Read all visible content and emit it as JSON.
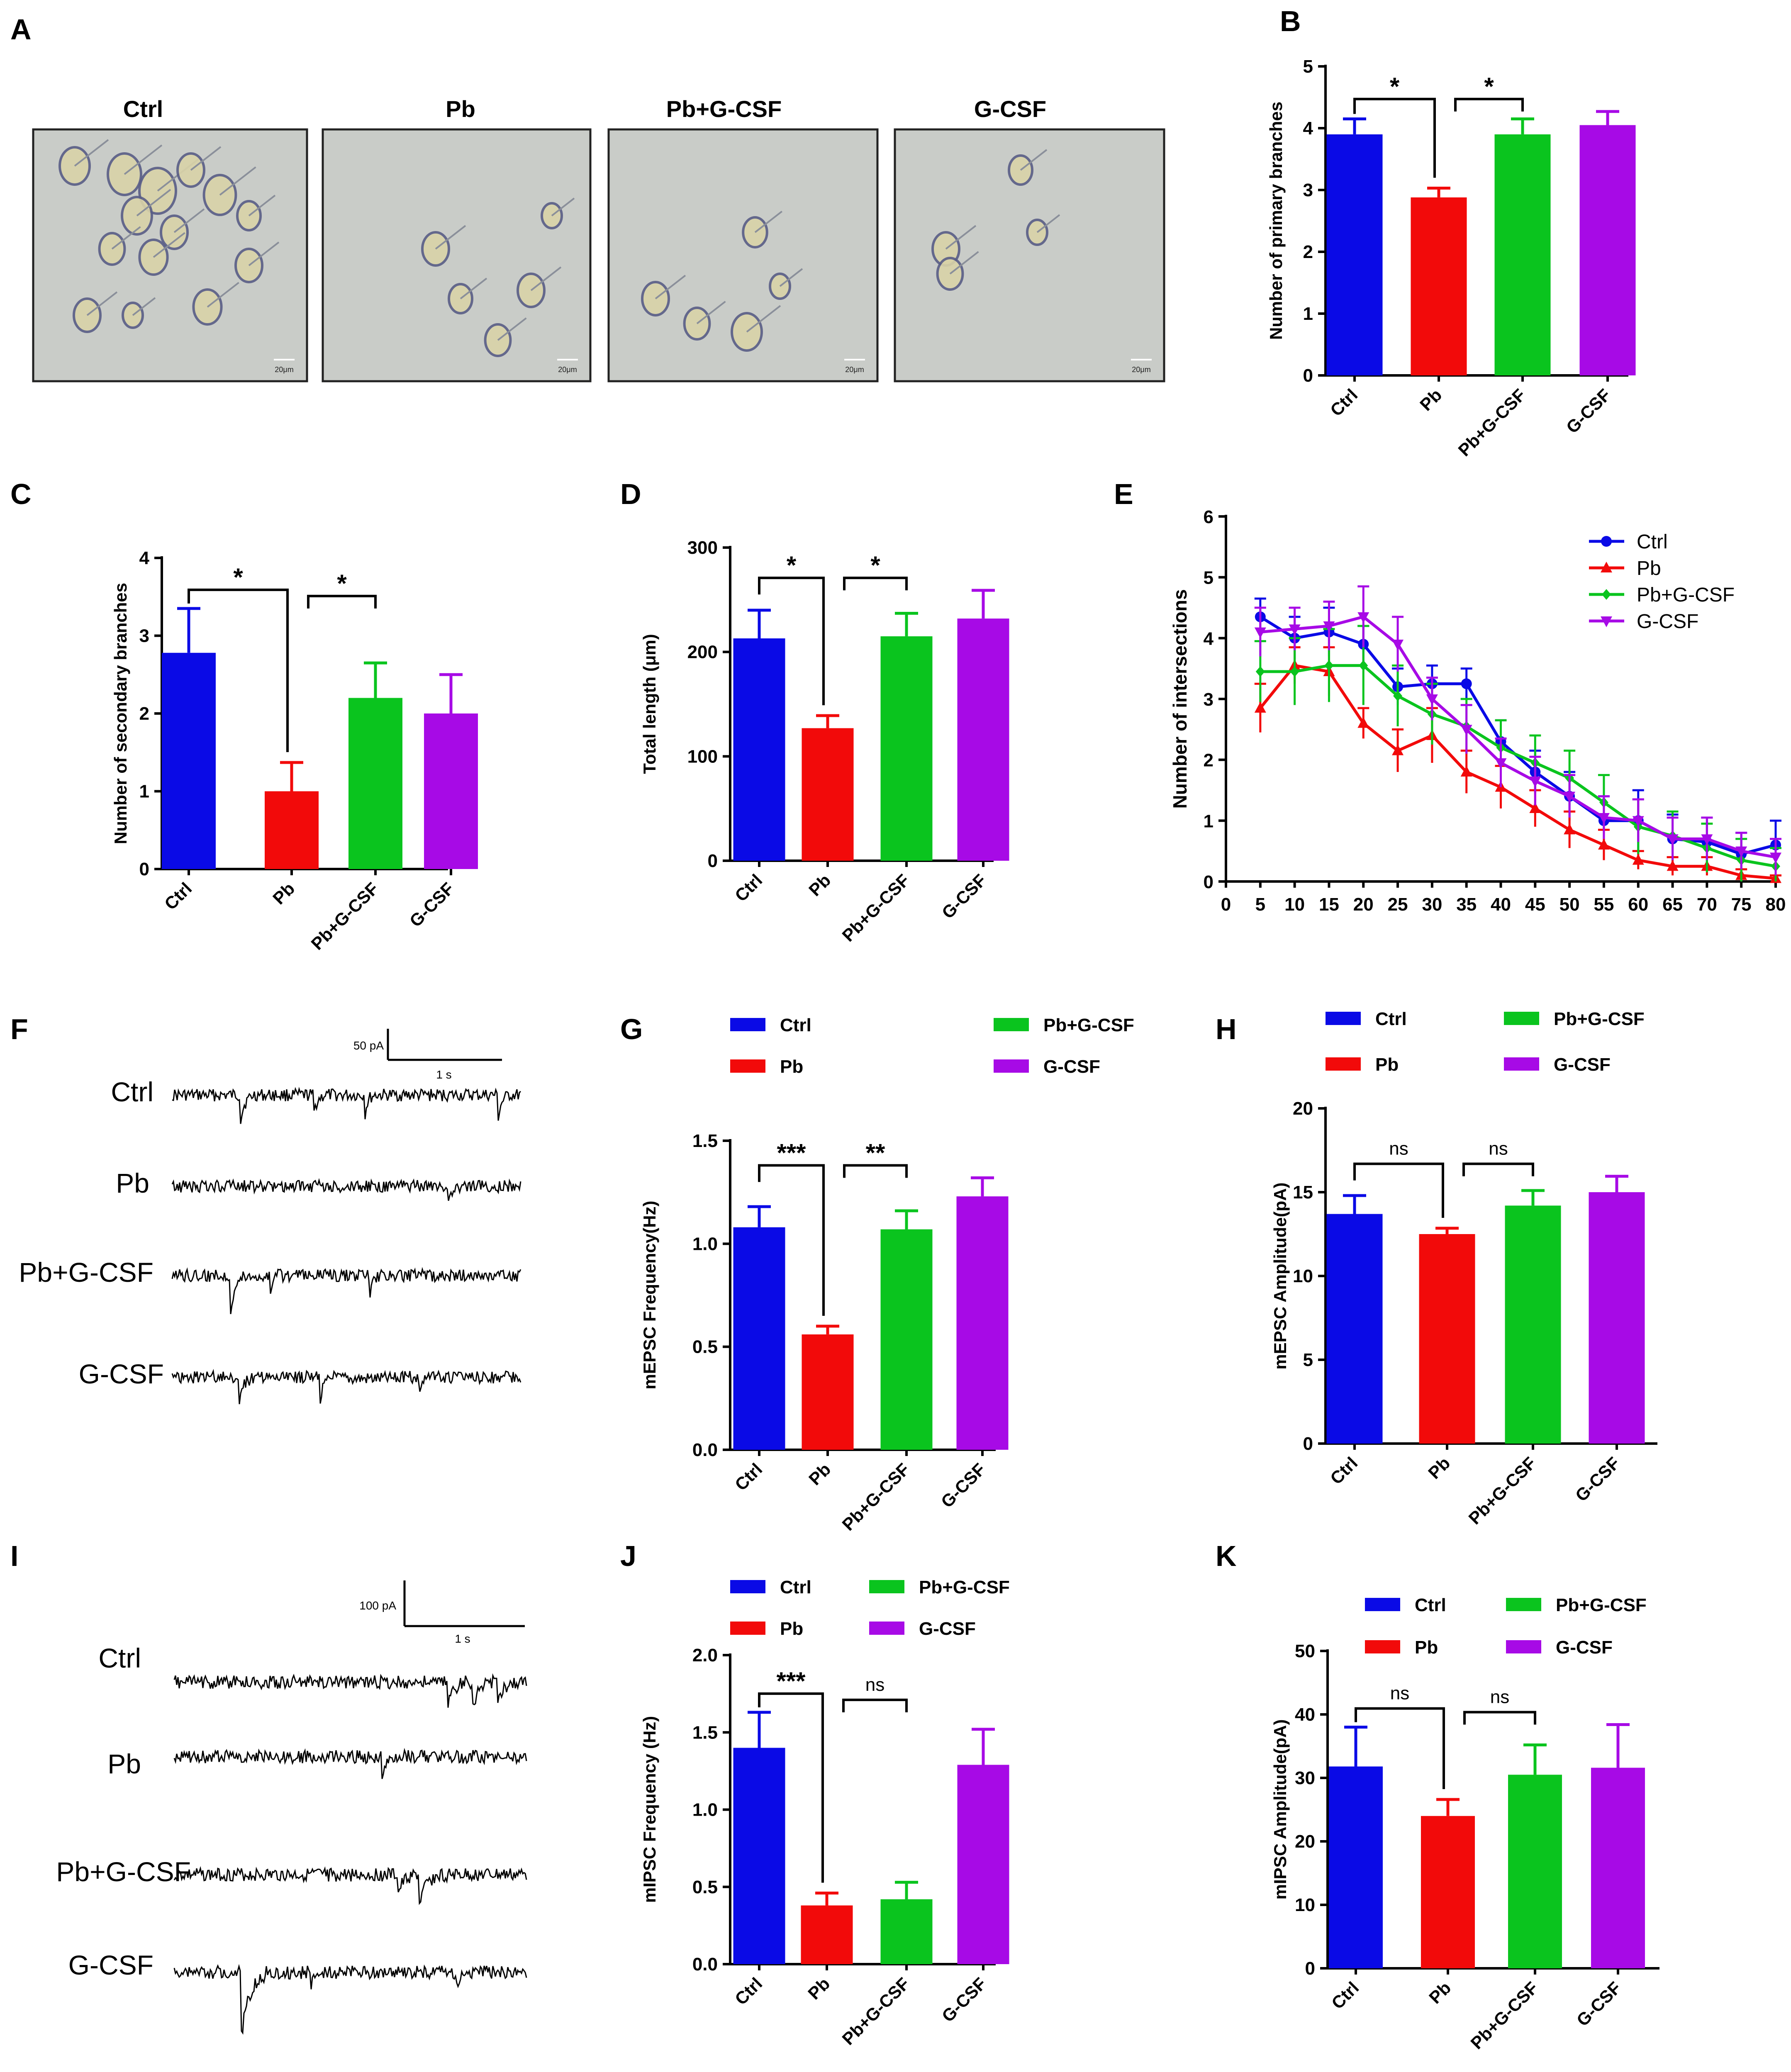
{
  "colors": {
    "ctrl": "#0a0ae6",
    "pb": "#f20a0a",
    "pbg": "#0ac41e",
    "gcsf": "#a70ae6",
    "bg": "#ffffff",
    "photo": "#c9ccc8"
  },
  "groups": [
    "Ctrl",
    "Pb",
    "Pb+G-CSF",
    "G-CSF"
  ],
  "panels": {
    "A": {
      "letter": "A",
      "photos": [
        "Ctrl",
        "Pb",
        "Pb+G-CSF",
        "G-CSF"
      ],
      "scale_bar": "20μm"
    },
    "F": {
      "letter": "F",
      "traces": [
        "Ctrl",
        "Pb",
        "Pb+G-CSF",
        "G-CSF"
      ],
      "scale_amp": "50 pA",
      "scale_time": "1 s"
    },
    "I": {
      "letter": "I",
      "traces": [
        "Ctrl",
        "Pb",
        "Pb+G-CSF",
        "G-CSF"
      ],
      "scale_amp": "100 pA",
      "scale_time": "1 s"
    }
  },
  "chart_data": [
    {
      "id": "B",
      "type": "bar",
      "letter": "B",
      "categories": [
        "Ctrl",
        "Pb",
        "Pb+G-CSF",
        "G-CSF"
      ],
      "values": [
        3.9,
        2.88,
        3.9,
        4.05
      ],
      "errors": [
        0.25,
        0.15,
        0.25,
        0.22
      ],
      "ylabel": "Number of primary branches",
      "ylim": [
        0,
        5
      ],
      "yticks": [
        "0",
        "1",
        "2",
        "3",
        "4",
        "5"
      ],
      "brackets": [
        {
          "from": 0,
          "to": 1,
          "label": "*"
        },
        {
          "from": 1,
          "to": 2,
          "label": "*"
        }
      ]
    },
    {
      "id": "C",
      "type": "bar",
      "letter": "C",
      "categories": [
        "Ctrl",
        "Pb",
        "Pb+G-CSF",
        "G-CSF"
      ],
      "values": [
        2.78,
        1.0,
        2.2,
        2.0
      ],
      "errors": [
        0.57,
        0.37,
        0.45,
        0.5
      ],
      "ylabel": "Number of secondary branches",
      "ylim": [
        0,
        4
      ],
      "yticks": [
        "0",
        "1",
        "2",
        "3",
        "4"
      ],
      "brackets": [
        {
          "from": 0,
          "to": 1,
          "label": "*"
        },
        {
          "from": 1,
          "to": 2,
          "label": "*"
        }
      ]
    },
    {
      "id": "D",
      "type": "bar",
      "letter": "D",
      "categories": [
        "Ctrl",
        "Pb",
        "Pb+G-CSF",
        "G-CSF"
      ],
      "values": [
        213,
        127,
        215,
        232
      ],
      "errors": [
        27,
        12,
        22,
        27
      ],
      "ylabel": "Total length (μm)",
      "ylim": [
        0,
        300
      ],
      "yticks": [
        "0",
        "100",
        "200",
        "300"
      ],
      "brackets": [
        {
          "from": 0,
          "to": 1,
          "label": "*"
        },
        {
          "from": 1,
          "to": 2,
          "label": "*"
        }
      ]
    },
    {
      "id": "E",
      "type": "line",
      "letter": "E",
      "ylabel": "Number of intersections",
      "xlim": [
        0,
        80
      ],
      "ylim": [
        0,
        6
      ],
      "xticks": [
        "0",
        "5",
        "10",
        "15",
        "20",
        "25",
        "30",
        "35",
        "40",
        "45",
        "50",
        "55",
        "60",
        "65",
        "70",
        "75",
        "80"
      ],
      "yticks": [
        "0",
        "1",
        "2",
        "3",
        "4",
        "5",
        "6"
      ],
      "x": [
        5,
        10,
        15,
        20,
        25,
        30,
        35,
        40,
        45,
        50,
        55,
        60,
        65,
        70,
        75,
        80
      ],
      "series": [
        {
          "name": "Ctrl",
          "values": [
            4.35,
            4.0,
            4.1,
            3.9,
            3.2,
            3.25,
            3.25,
            2.3,
            1.8,
            1.4,
            1.0,
            1.0,
            0.7,
            0.65,
            0.45,
            0.6
          ],
          "err": [
            0.3,
            0.35,
            0.4,
            0.3,
            0.3,
            0.3,
            0.25,
            0.35,
            0.35,
            0.4,
            0.4,
            0.5,
            0.4,
            0.4,
            0.35,
            0.4
          ]
        },
        {
          "name": "Pb",
          "values": [
            2.85,
            3.55,
            3.45,
            2.6,
            2.15,
            2.4,
            1.8,
            1.55,
            1.2,
            0.85,
            0.6,
            0.35,
            0.25,
            0.25,
            0.1,
            0.05
          ],
          "err": [
            0.4,
            0.3,
            0.4,
            0.25,
            0.35,
            0.45,
            0.35,
            0.35,
            0.3,
            0.3,
            0.25,
            0.15,
            0.15,
            0.15,
            0.1,
            0.05
          ]
        },
        {
          "name": "Pb+G-CSF",
          "values": [
            3.45,
            3.45,
            3.55,
            3.55,
            3.05,
            2.75,
            2.55,
            2.2,
            1.95,
            1.7,
            1.3,
            0.9,
            0.75,
            0.55,
            0.35,
            0.25
          ],
          "err": [
            0.5,
            0.55,
            0.6,
            0.65,
            0.5,
            0.5,
            0.45,
            0.45,
            0.45,
            0.45,
            0.45,
            0.45,
            0.4,
            0.4,
            0.35,
            0.3
          ]
        },
        {
          "name": "G-CSF",
          "values": [
            4.1,
            4.15,
            4.2,
            4.35,
            3.9,
            3.0,
            2.5,
            1.95,
            1.65,
            1.4,
            1.05,
            1.0,
            0.7,
            0.7,
            0.5,
            0.4
          ],
          "err": [
            0.4,
            0.35,
            0.4,
            0.5,
            0.45,
            0.35,
            0.4,
            0.4,
            0.4,
            0.35,
            0.35,
            0.35,
            0.35,
            0.35,
            0.3,
            0.3
          ]
        }
      ],
      "legend_position": "top-right"
    },
    {
      "id": "G",
      "type": "bar",
      "letter": "G",
      "categories": [
        "Ctrl",
        "Pb",
        "Pb+G-CSF",
        "G-CSF"
      ],
      "values": [
        1.08,
        0.56,
        1.07,
        1.23
      ],
      "errors": [
        0.1,
        0.04,
        0.09,
        0.09
      ],
      "ylabel": "mEPSC Frequency(Hz)",
      "ylim": [
        0,
        1.5
      ],
      "yticks": [
        "0.0",
        "0.5",
        "1.0",
        "1.5"
      ],
      "brackets": [
        {
          "from": 0,
          "to": 1,
          "label": "***"
        },
        {
          "from": 1,
          "to": 2,
          "label": "**"
        }
      ]
    },
    {
      "id": "H",
      "type": "bar",
      "letter": "H",
      "categories": [
        "Ctrl",
        "Pb",
        "Pb+G-CSF",
        "G-CSF"
      ],
      "values": [
        13.7,
        12.5,
        14.2,
        15.0
      ],
      "errors": [
        1.1,
        0.35,
        0.9,
        0.95
      ],
      "ylabel": "mEPSC Amplitude(pA)",
      "ylim": [
        0,
        20
      ],
      "yticks": [
        "0",
        "5",
        "10",
        "15",
        "20"
      ],
      "brackets": [
        {
          "from": 0,
          "to": 1,
          "label": "ns"
        },
        {
          "from": 1,
          "to": 2,
          "label": "ns"
        }
      ]
    },
    {
      "id": "J",
      "type": "bar",
      "letter": "J",
      "categories": [
        "Ctrl",
        "Pb",
        "Pb+G-CSF",
        "G-CSF"
      ],
      "values": [
        1.4,
        0.38,
        0.42,
        1.29
      ],
      "errors": [
        0.23,
        0.08,
        0.11,
        0.23
      ],
      "ylabel": "mIPSC Frequency (Hz)",
      "ylim": [
        0,
        2.0
      ],
      "yticks": [
        "0.0",
        "0.5",
        "1.0",
        "1.5",
        "2.0"
      ],
      "brackets": [
        {
          "from": 0,
          "to": 1,
          "label": "***"
        },
        {
          "from": 1,
          "to": 2,
          "label": "ns"
        }
      ]
    },
    {
      "id": "K",
      "type": "bar",
      "letter": "K",
      "categories": [
        "Ctrl",
        "Pb",
        "Pb+G-CSF",
        "G-CSF"
      ],
      "values": [
        31.8,
        24.0,
        30.5,
        31.6
      ],
      "errors": [
        6.2,
        2.6,
        4.7,
        6.8
      ],
      "ylabel": "mIPSC Amplitude(pA)",
      "ylim": [
        0,
        50
      ],
      "yticks": [
        "0",
        "10",
        "20",
        "30",
        "40",
        "50"
      ],
      "brackets": [
        {
          "from": 0,
          "to": 1,
          "label": "ns"
        },
        {
          "from": 1,
          "to": 2,
          "label": "ns"
        }
      ]
    }
  ]
}
